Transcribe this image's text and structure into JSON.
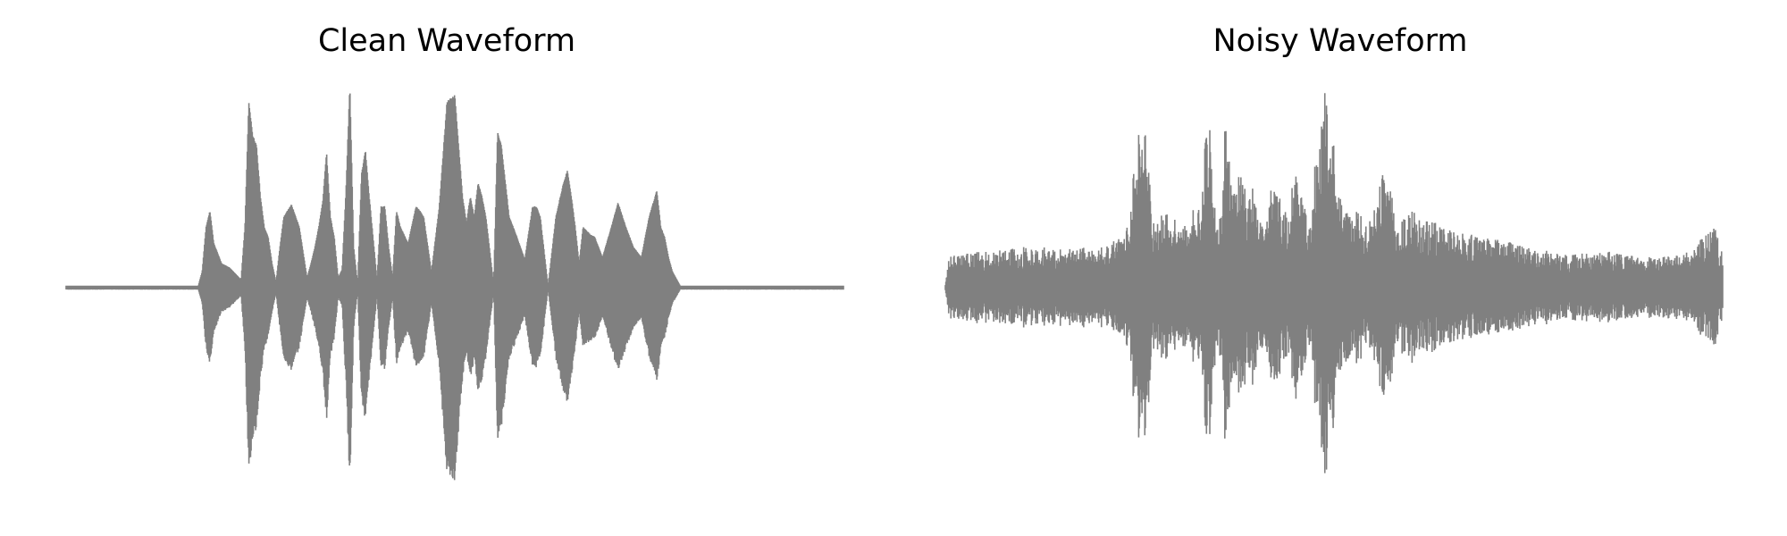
{
  "chart_data": [
    {
      "type": "line",
      "title": "Clean Waveform",
      "xlabel": "",
      "ylabel": "",
      "axes_visible": false,
      "grid": false,
      "color": "#808080",
      "xlim": [
        0,
        1
      ],
      "ylim": [
        -1,
        1
      ],
      "envelope": {
        "x": [
          0.0,
          0.17,
          0.175,
          0.18,
          0.185,
          0.19,
          0.2,
          0.21,
          0.225,
          0.23,
          0.235,
          0.24,
          0.245,
          0.25,
          0.255,
          0.26,
          0.265,
          0.27,
          0.275,
          0.28,
          0.29,
          0.3,
          0.31,
          0.315,
          0.32,
          0.325,
          0.33,
          0.335,
          0.34,
          0.345,
          0.35,
          0.355,
          0.36,
          0.365,
          0.37,
          0.375,
          0.38,
          0.385,
          0.39,
          0.4,
          0.405,
          0.41,
          0.415,
          0.42,
          0.425,
          0.43,
          0.44,
          0.45,
          0.455,
          0.46,
          0.47,
          0.48,
          0.49,
          0.5,
          0.51,
          0.515,
          0.52,
          0.525,
          0.53,
          0.535,
          0.54,
          0.55,
          0.555,
          0.56,
          0.57,
          0.58,
          0.59,
          0.6,
          0.605,
          0.61,
          0.62,
          0.63,
          0.64,
          0.645,
          0.65,
          0.655,
          0.66,
          0.665,
          0.67,
          0.675,
          0.68,
          0.69,
          0.7,
          0.71,
          0.72,
          0.73,
          0.74,
          0.75,
          0.76,
          0.765,
          0.77,
          0.775,
          0.78,
          0.79,
          1.0
        ],
        "amplitude": [
          0.01,
          0.01,
          0.08,
          0.3,
          0.38,
          0.22,
          0.12,
          0.1,
          0.04,
          0.3,
          0.92,
          0.75,
          0.7,
          0.45,
          0.3,
          0.25,
          0.12,
          0.03,
          0.2,
          0.35,
          0.41,
          0.3,
          0.05,
          0.12,
          0.2,
          0.3,
          0.42,
          0.67,
          0.35,
          0.25,
          0.05,
          0.09,
          0.48,
          1.0,
          0.2,
          0.02,
          0.56,
          0.68,
          0.45,
          0.04,
          0.4,
          0.4,
          0.2,
          0.05,
          0.38,
          0.3,
          0.22,
          0.4,
          0.38,
          0.35,
          0.08,
          0.4,
          0.92,
          0.95,
          0.45,
          0.32,
          0.45,
          0.35,
          0.52,
          0.45,
          0.35,
          0.02,
          0.77,
          0.7,
          0.35,
          0.25,
          0.14,
          0.4,
          0.4,
          0.35,
          0.01,
          0.35,
          0.52,
          0.58,
          0.45,
          0.3,
          0.12,
          0.3,
          0.28,
          0.26,
          0.25,
          0.15,
          0.28,
          0.42,
          0.3,
          0.2,
          0.15,
          0.35,
          0.48,
          0.3,
          0.25,
          0.15,
          0.08,
          0.01,
          0.01
        ]
      }
    },
    {
      "type": "line",
      "title": "Noisy Waveform",
      "xlabel": "",
      "ylabel": "",
      "axes_visible": false,
      "grid": false,
      "color": "#808080",
      "xlim": [
        0,
        1
      ],
      "ylim": [
        -1,
        1
      ],
      "envelope": {
        "x": [
          0.0,
          0.005,
          0.01,
          0.05,
          0.1,
          0.15,
          0.2,
          0.23,
          0.24,
          0.245,
          0.25,
          0.255,
          0.26,
          0.265,
          0.27,
          0.28,
          0.3,
          0.31,
          0.32,
          0.33,
          0.335,
          0.34,
          0.345,
          0.35,
          0.355,
          0.36,
          0.37,
          0.38,
          0.39,
          0.395,
          0.4,
          0.41,
          0.42,
          0.43,
          0.44,
          0.45,
          0.46,
          0.47,
          0.48,
          0.49,
          0.5,
          0.51,
          0.52,
          0.53,
          0.54,
          0.55,
          0.56,
          0.57,
          0.58,
          0.6,
          0.65,
          0.7,
          0.75,
          0.8,
          0.85,
          0.9,
          0.95,
          0.99,
          1.0
        ],
        "amplitude": [
          0.02,
          0.15,
          0.16,
          0.18,
          0.2,
          0.2,
          0.2,
          0.25,
          0.4,
          0.92,
          0.75,
          0.8,
          0.7,
          0.4,
          0.3,
          0.38,
          0.32,
          0.3,
          0.4,
          0.4,
          0.85,
          0.9,
          0.5,
          0.3,
          0.45,
          0.88,
          0.45,
          0.6,
          0.4,
          0.56,
          0.4,
          0.3,
          0.5,
          0.45,
          0.35,
          0.6,
          0.42,
          0.3,
          0.85,
          0.98,
          0.7,
          0.4,
          0.35,
          0.4,
          0.3,
          0.4,
          0.55,
          0.62,
          0.3,
          0.38,
          0.28,
          0.25,
          0.2,
          0.16,
          0.18,
          0.15,
          0.16,
          0.3,
          0.16
        ]
      }
    }
  ]
}
